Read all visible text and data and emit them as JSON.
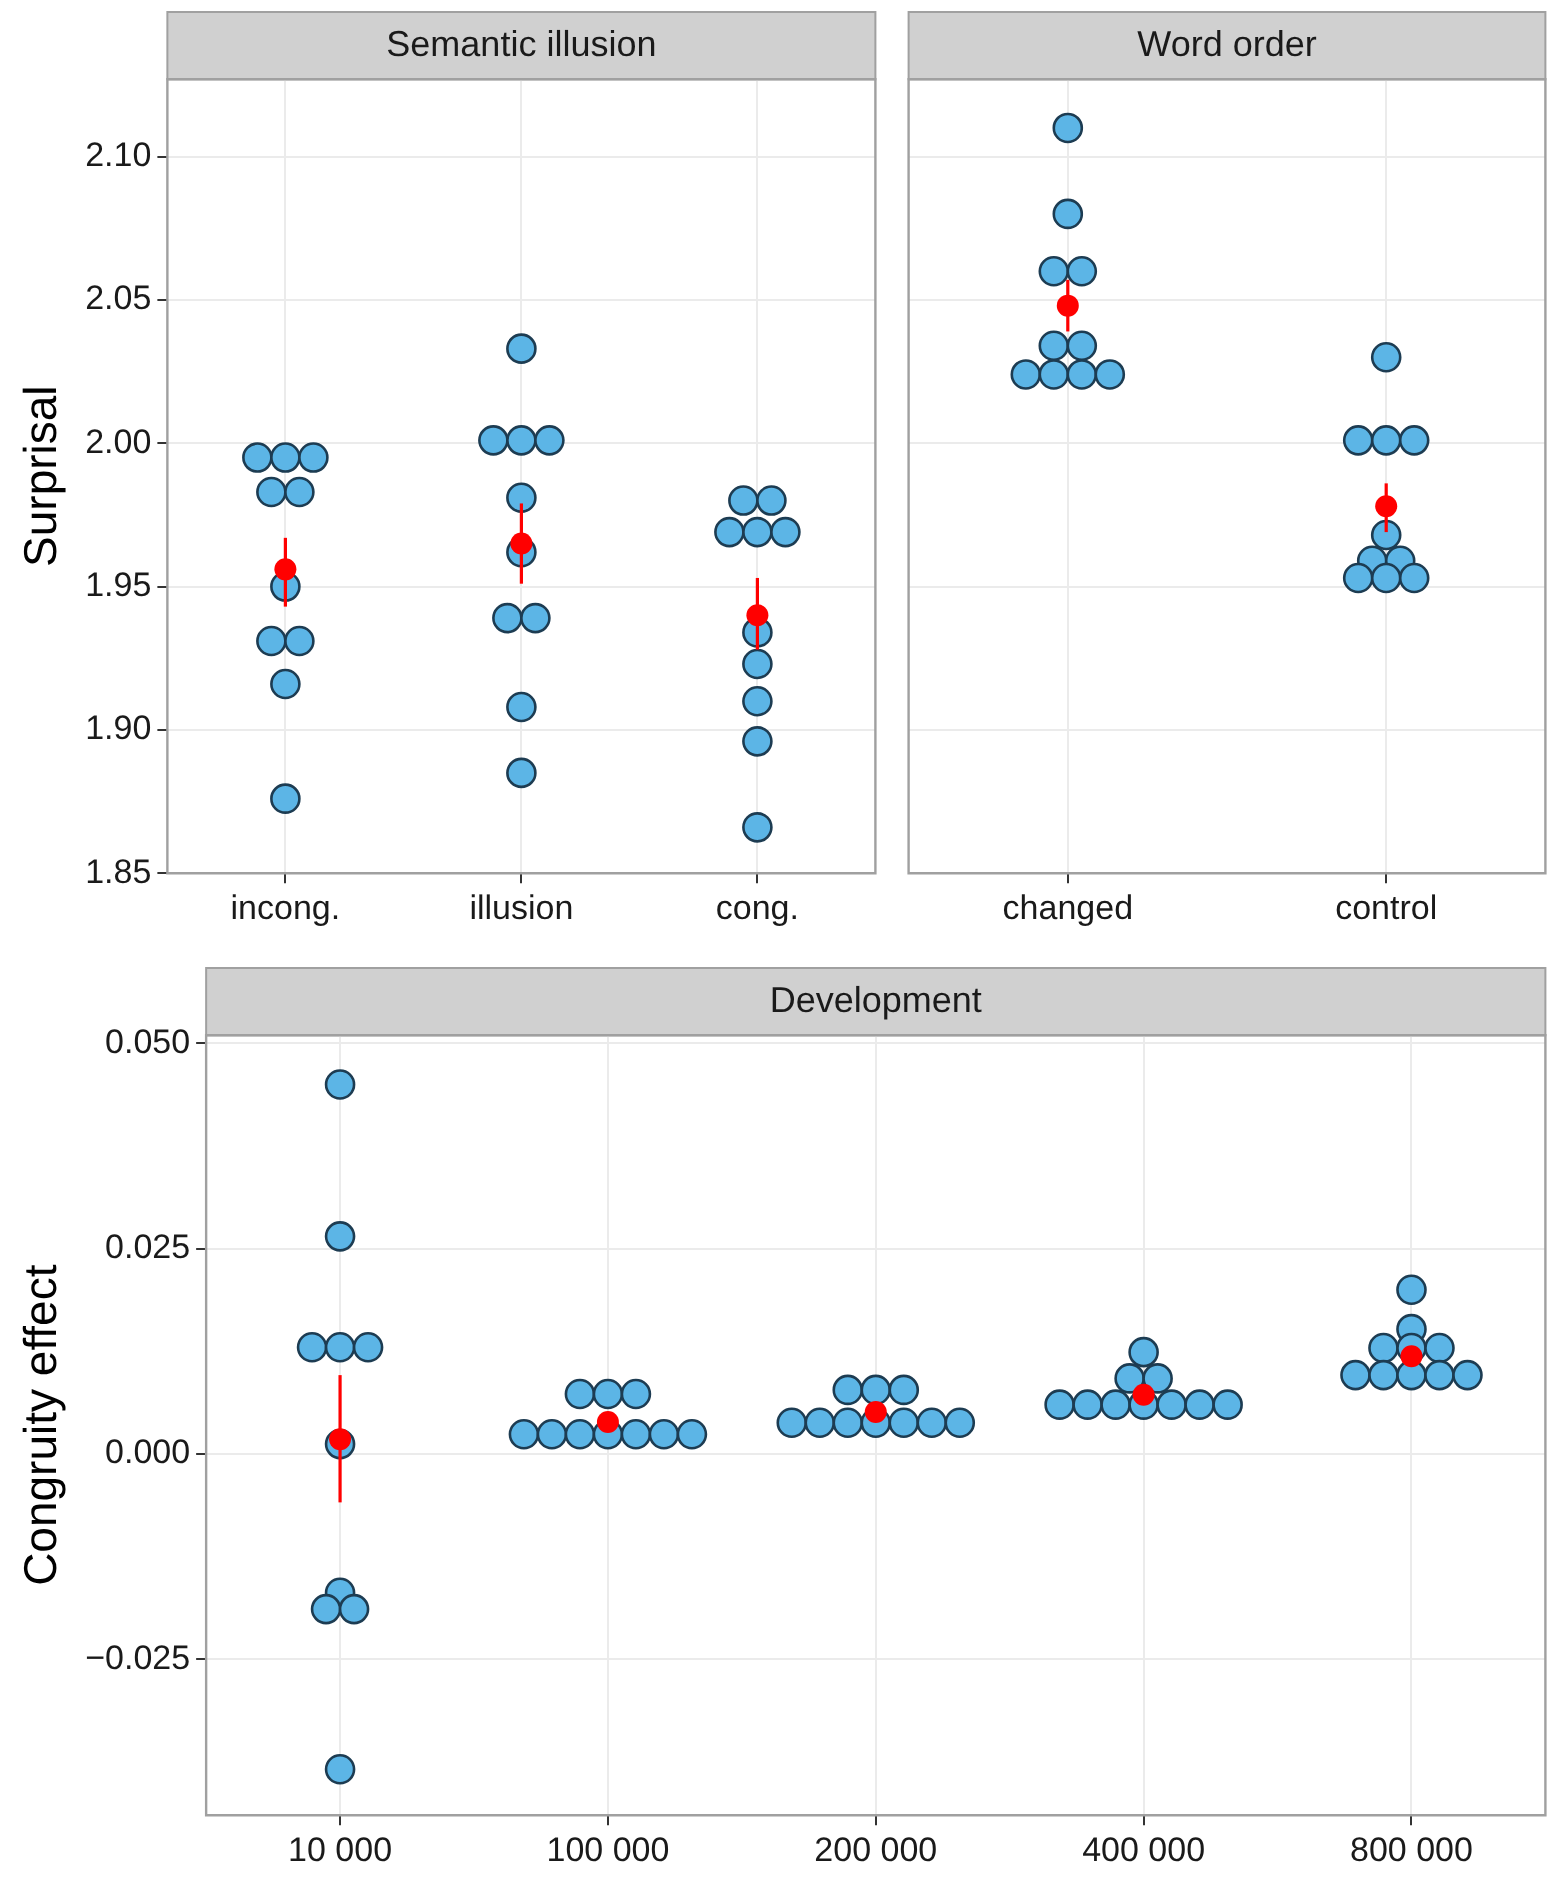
{
  "chart_data": [
    {
      "type": "scatter",
      "title": "Semantic illusion",
      "ylabel": "Surprisal",
      "categories": [
        "incong.",
        "illusion",
        "cong."
      ],
      "ylim": [
        1.85,
        2.127
      ],
      "yticks": [
        1.85,
        {
          "value": 1.9,
          "label": "1.90"
        },
        1.95,
        {
          "value": 2.0,
          "label": "2.00"
        },
        2.05,
        {
          "value": 2.1,
          "label": "2.10"
        }
      ],
      "grid": true,
      "marker": "circle",
      "series": [
        {
          "color": "#5cb5e6",
          "x": [
            "incong.",
            "incong.",
            "incong.",
            "incong.",
            "incong.",
            "incong.",
            "incong.",
            "incong.",
            "incong.",
            "incong.",
            "illusion",
            "illusion",
            "illusion",
            "illusion",
            "illusion",
            "illusion",
            "illusion",
            "illusion",
            "illusion",
            "illusion",
            "cong.",
            "cong.",
            "cong.",
            "cong.",
            "cong.",
            "cong.",
            "cong.",
            "cong.",
            "cong.",
            "cong."
          ],
          "values": [
            1.995,
            1.995,
            1.995,
            1.983,
            1.983,
            1.95,
            1.931,
            1.931,
            1.916,
            1.876,
            2.033,
            2.001,
            2.001,
            2.001,
            1.981,
            1.962,
            1.939,
            1.939,
            1.908,
            1.885,
            1.98,
            1.98,
            1.969,
            1.969,
            1.969,
            1.934,
            1.923,
            1.91,
            1.896,
            1.866
          ]
        },
        {
          "color": "#ff0000",
          "values": [
            1.956,
            1.965,
            1.94
          ],
          "errors": [
            [
              1.943,
              1.967
            ],
            [
              1.951,
              1.979
            ],
            [
              1.928,
              1.953
            ]
          ]
        }
      ]
    },
    {
      "type": "scatter",
      "title": "Word order",
      "categories": [
        "changed",
        "control"
      ],
      "ylim": [
        1.85,
        2.127
      ],
      "yticks": [
        {
          "value": 1.85,
          "label": null
        },
        {
          "value": 1.9,
          "label": null
        },
        {
          "value": 1.95,
          "label": null
        },
        {
          "value": 2.0,
          "label": null
        },
        {
          "value": 2.05,
          "label": null
        },
        {
          "value": 2.1,
          "label": null
        }
      ],
      "grid": true,
      "marker": "circle",
      "tick_labels": "x",
      "series": [
        {
          "color": "#5cb5e6",
          "x": [
            "changed",
            "changed",
            "changed",
            "changed",
            "changed",
            "changed",
            "changed",
            "changed",
            "changed",
            "changed",
            "control",
            "control",
            "control",
            "control",
            "control",
            "control",
            "control",
            "control",
            "control",
            "control"
          ],
          "values": [
            2.11,
            2.08,
            2.06,
            2.06,
            2.034,
            2.034,
            2.024,
            2.024,
            2.024,
            2.024,
            2.03,
            2.001,
            2.001,
            2.001,
            1.968,
            1.959,
            1.959,
            1.953,
            1.953,
            1.953
          ]
        },
        {
          "color": "#ff0000",
          "values": [
            2.048,
            1.978
          ],
          "errors": [
            [
              2.039,
              2.057
            ],
            [
              1.969,
              1.986
            ]
          ]
        }
      ]
    },
    {
      "type": "scatter",
      "title": "Development",
      "ylabel": "Congruity effect",
      "categories": [
        "10 000",
        "100 000",
        "200 000",
        "400 000",
        "800 000"
      ],
      "ylim": [
        -0.044,
        0.051
      ],
      "yticks": [
        {
          "value": -0.025,
          "label": "−0.025"
        },
        {
          "value": 0,
          "label": "0.000"
        },
        0.025,
        {
          "value": 0.05,
          "label": "0.050"
        }
      ],
      "grid": true,
      "marker": "circle",
      "series": [
        {
          "color": "#5cb5e6",
          "x": [
            "10 000",
            "10 000",
            "10 000",
            "10 000",
            "10 000",
            "10 000",
            "10 000",
            "10 000",
            "10 000",
            "10 000",
            "100 000",
            "100 000",
            "100 000",
            "100 000",
            "100 000",
            "100 000",
            "100 000",
            "100 000",
            "100 000",
            "100 000",
            "200 000",
            "200 000",
            "200 000",
            "200 000",
            "200 000",
            "200 000",
            "200 000",
            "200 000",
            "200 000",
            "200 000",
            "400 000",
            "400 000",
            "400 000",
            "400 000",
            "400 000",
            "400 000",
            "400 000",
            "400 000",
            "400 000",
            "400 000",
            "800 000",
            "800 000",
            "800 000",
            "800 000",
            "800 000",
            "800 000",
            "800 000",
            "800 000",
            "800 000",
            "800 000"
          ],
          "values": [
            0.045,
            0.0265,
            0.013,
            0.013,
            0.013,
            0.0012,
            -0.0169,
            -0.0189,
            -0.0189,
            -0.0384,
            0.0073,
            0.0073,
            0.0073,
            0.0024,
            0.0024,
            0.0024,
            0.0024,
            0.0024,
            0.0024,
            0.0024,
            0.0078,
            0.0078,
            0.0078,
            0.0038,
            0.0038,
            0.0038,
            0.0038,
            0.0038,
            0.0038,
            0.0038,
            0.0124,
            0.0092,
            0.0092,
            0.006,
            0.006,
            0.006,
            0.006,
            0.006,
            0.006,
            0.006,
            0.02,
            0.0152,
            0.0129,
            0.0129,
            0.0129,
            0.0096,
            0.0096,
            0.0096,
            0.0096,
            0.0096
          ]
        },
        {
          "color": "#ff0000",
          "values": [
            0.0018,
            0.0039,
            0.0051,
            0.0072,
            0.0119
          ],
          "errors": [
            [
              -0.0059,
              0.0096
            ],
            null,
            null,
            null,
            null
          ]
        }
      ]
    }
  ]
}
